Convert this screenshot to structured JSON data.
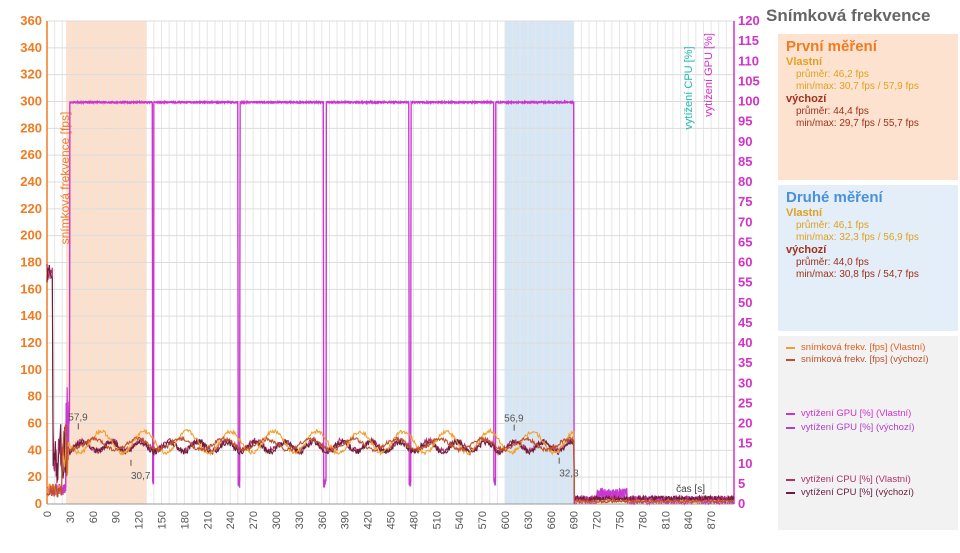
{
  "chart_data": {
    "type": "line",
    "title": "Snímková frekvence",
    "y_left_label": "snímková frekvence [fps]",
    "y_right_label_cpu": "vytížení CPU [%]",
    "y_right_label_gpu": "vytížení GPU [%]",
    "x_label": "čas [s]",
    "y_left_lim": [
      0,
      360
    ],
    "y_left_ticks": [
      "0",
      "20",
      "40",
      "60",
      "80",
      "100",
      "120",
      "140",
      "160",
      "180",
      "200",
      "220",
      "240",
      "260",
      "280",
      "300",
      "320",
      "340",
      "360"
    ],
    "y_right_lim": [
      0,
      120
    ],
    "y_right_ticks": [
      "0",
      "5",
      "10",
      "15",
      "20",
      "25",
      "30",
      "35",
      "40",
      "45",
      "50",
      "55",
      "60",
      "65",
      "70",
      "75",
      "80",
      "85",
      "90",
      "95",
      "100",
      "105",
      "110",
      "115",
      "120"
    ],
    "x_lim": [
      0,
      900
    ],
    "x_ticks": [
      "0",
      "30",
      "60",
      "90",
      "120",
      "150",
      "180",
      "210",
      "240",
      "270",
      "300",
      "330",
      "360",
      "390",
      "420",
      "450",
      "480",
      "510",
      "540",
      "570",
      "600",
      "630",
      "660",
      "690",
      "720",
      "750",
      "780",
      "810",
      "840",
      "870"
    ],
    "highlight_regions": [
      {
        "x": [
          25,
          130
        ],
        "color": "#fde0cc"
      },
      {
        "x": [
          600,
          690
        ],
        "color": "#d6e6f5"
      }
    ],
    "annotations": [
      {
        "x": 41,
        "y": 57.9,
        "text": "57,9"
      },
      {
        "x": 110,
        "y": 30.7,
        "text": "30,7"
      },
      {
        "x": 612,
        "y": 56.9,
        "text": "56,9"
      },
      {
        "x": 671,
        "y": 32.3,
        "text": "32,3"
      }
    ],
    "gpu_load_blocks": [
      [
        30,
        138
      ],
      [
        140,
        250
      ],
      [
        253,
        362
      ],
      [
        366,
        474
      ],
      [
        477,
        585
      ],
      [
        588,
        690
      ]
    ],
    "series": [
      {
        "name": "snímková frekv. [fps] (Vlastní)",
        "color": "#f0a030",
        "axis": "left",
        "mean": 46.2,
        "amp": 8
      },
      {
        "name": "snímková frekv. [fps] (výchozí)",
        "color": "#c0502a",
        "axis": "left",
        "mean": 44.4,
        "amp": 4
      },
      {
        "name": "vytížení GPU [%] (Vlastní)",
        "color": "#d030d0",
        "axis": "right",
        "level": 100
      },
      {
        "name": "vytížení GPU [%] (výchozí)",
        "color": "#b040d0",
        "axis": "right",
        "level": 100
      },
      {
        "name": "vytížení CPU [%] (Vlastní)",
        "color": "#b0306a",
        "axis": "right",
        "level": 14.5
      },
      {
        "name": "vytížení CPU [%] (výchozí)",
        "color": "#6a1e3a",
        "axis": "right",
        "level": 14.2
      }
    ]
  },
  "panels": {
    "first": {
      "heading": "První měření",
      "group1_title": "Vlastní",
      "group1_avg": "průměr: 46,2 fps",
      "group1_minmax": "min/max: 30,7 fps / 57,9 fps",
      "group2_title": "výchozí",
      "group2_avg": "průměr: 44,4 fps",
      "group2_minmax": "min/max: 29,7 fps / 55,7 fps"
    },
    "second": {
      "heading": "Druhé měření",
      "group1_title": "Vlastní",
      "group1_avg": "průměr: 46,1 fps",
      "group1_minmax": "min/max: 32,3 fps / 56,9 fps",
      "group2_title": "výchozí",
      "group2_avg": "průměr: 44,0 fps",
      "group2_minmax": "min/max: 30,8 fps / 54,7 fps"
    }
  },
  "colors": {
    "left_axis": "#f07b20",
    "right_axis": "#d232c8",
    "first_heading": "#f07b20",
    "second_heading": "#4a90d9",
    "vlastni": "#e0a020",
    "vychozi": "#a0301a"
  }
}
